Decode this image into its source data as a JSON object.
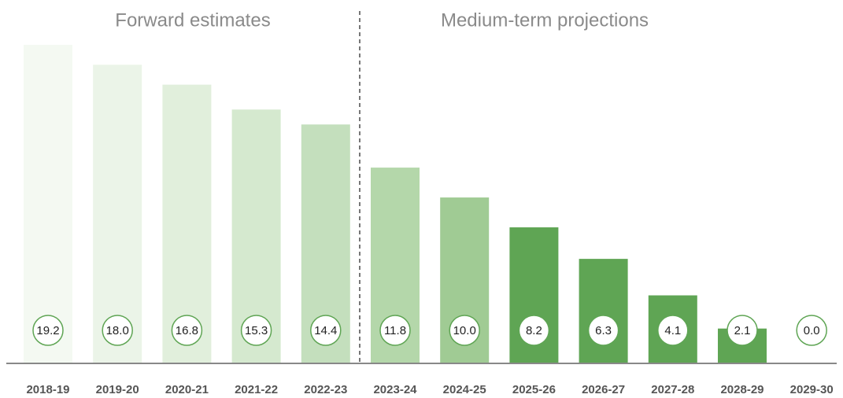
{
  "chart_data": {
    "type": "bar",
    "sections": [
      "Forward estimates",
      "Medium-term projections"
    ],
    "categories": [
      "2018-19",
      "2019-20",
      "2020-21",
      "2021-22",
      "2022-23",
      "2023-24",
      "2024-25",
      "2025-26",
      "2026-27",
      "2027-28",
      "2028-29",
      "2029-30"
    ],
    "values": [
      19.2,
      18.0,
      16.8,
      15.3,
      14.4,
      11.8,
      10.0,
      8.2,
      6.3,
      4.1,
      2.1,
      0.0
    ],
    "value_labels": [
      "19.2",
      "18.0",
      "16.8",
      "15.3",
      "14.4",
      "11.8",
      "10.0",
      "8.2",
      "6.3",
      "4.1",
      "2.1",
      "0.0"
    ],
    "colors": [
      "#f4f9f2",
      "#ebf4e8",
      "#e1efdc",
      "#d5e9cf",
      "#c4dfbd",
      "#b4d7aa",
      "#a0cb94",
      "#5fa554",
      "#5fa554",
      "#5fa554",
      "#5fa554",
      "#5fa554"
    ]
  }
}
